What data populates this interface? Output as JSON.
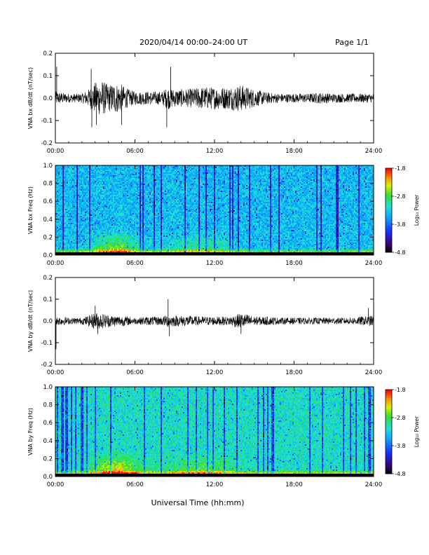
{
  "header": {
    "title": "2020/04/14  00:00–24:00 UT",
    "page": "Page 1/1"
  },
  "x_axis": {
    "label": "Universal Time (hh:mm)",
    "ticks": [
      "00:00",
      "06:00",
      "12:00",
      "18:00",
      "24:00"
    ],
    "range_hours": [
      0,
      24
    ]
  },
  "colorbar": {
    "label": "Log₁₀ Power",
    "ticks": [
      "-1.8",
      "-2.8",
      "-3.8",
      "-4.8"
    ],
    "range": [
      -4.8,
      -1.8
    ]
  },
  "chart_data": [
    {
      "type": "line",
      "ylabel": "VNA bx dB/dt (nT/sec)",
      "ylim": [
        -0.2,
        0.2
      ],
      "yticks": [
        "0.2",
        "0.1",
        "0.0",
        "-0.1",
        "-0.2"
      ],
      "envelope_hours": [
        0,
        0.5,
        1,
        2,
        2.5,
        3,
        3.5,
        4,
        4.5,
        5,
        5.5,
        6,
        7,
        8,
        8.5,
        9,
        10,
        11,
        12,
        13,
        14,
        14.5,
        15,
        16,
        17,
        18,
        19,
        20,
        21,
        22,
        23,
        24
      ],
      "envelope_amp": [
        0.03,
        0.025,
        0.02,
        0.02,
        0.04,
        0.07,
        0.08,
        0.06,
        0.07,
        0.06,
        0.04,
        0.03,
        0.03,
        0.03,
        0.05,
        0.04,
        0.04,
        0.05,
        0.05,
        0.05,
        0.06,
        0.05,
        0.04,
        0.025,
        0.02,
        0.02,
        0.02,
        0.025,
        0.02,
        0.02,
        0.02,
        0.02
      ],
      "spikes": [
        {
          "x": 0.1,
          "y": 0.14
        },
        {
          "x": 2.7,
          "y": 0.13
        },
        {
          "x": 2.75,
          "y": -0.13
        },
        {
          "x": 3.1,
          "y": -0.12
        },
        {
          "x": 5.0,
          "y": -0.12
        },
        {
          "x": 8.7,
          "y": 0.14
        },
        {
          "x": 8.4,
          "y": -0.13
        }
      ]
    },
    {
      "type": "heatmap",
      "ylabel": "VNA bx Freq (Hz)",
      "ylim": [
        0.0,
        1.0
      ],
      "yticks": [
        "1.0",
        "0.8",
        "0.6",
        "0.4",
        "0.2",
        "0.0"
      ]
    },
    {
      "type": "line",
      "ylabel": "VNA by dB/dt (nT/sec)",
      "ylim": [
        -0.2,
        0.2
      ],
      "yticks": [
        "0.2",
        "0.1",
        "0.0",
        "-0.1",
        "-0.2"
      ],
      "envelope_hours": [
        0,
        0.5,
        1,
        2,
        2.5,
        3,
        3.5,
        4,
        4.5,
        5,
        5.5,
        6,
        7,
        8,
        8.5,
        9,
        10,
        11,
        12,
        13,
        14,
        14.5,
        15,
        16,
        17,
        18,
        19,
        20,
        21,
        22,
        23,
        24
      ],
      "envelope_amp": [
        0.02,
        0.02,
        0.015,
        0.015,
        0.025,
        0.04,
        0.035,
        0.03,
        0.025,
        0.025,
        0.02,
        0.015,
        0.02,
        0.02,
        0.03,
        0.025,
        0.025,
        0.02,
        0.02,
        0.02,
        0.035,
        0.03,
        0.02,
        0.02,
        0.015,
        0.015,
        0.015,
        0.015,
        0.015,
        0.015,
        0.02,
        0.025
      ],
      "spikes": [
        {
          "x": 0.05,
          "y": -0.13
        },
        {
          "x": 3.0,
          "y": 0.07
        },
        {
          "x": 3.2,
          "y": -0.06
        },
        {
          "x": 8.5,
          "y": 0.1
        },
        {
          "x": 8.6,
          "y": -0.07
        },
        {
          "x": 14.0,
          "y": -0.06
        },
        {
          "x": 23.6,
          "y": 0.06
        }
      ]
    },
    {
      "type": "heatmap",
      "ylabel": "VNA by Freq (Hz)",
      "ylim": [
        0.0,
        1.0
      ],
      "yticks": [
        "1.0",
        "0.8",
        "0.6",
        "0.4",
        "0.2",
        "0.0"
      ]
    }
  ]
}
